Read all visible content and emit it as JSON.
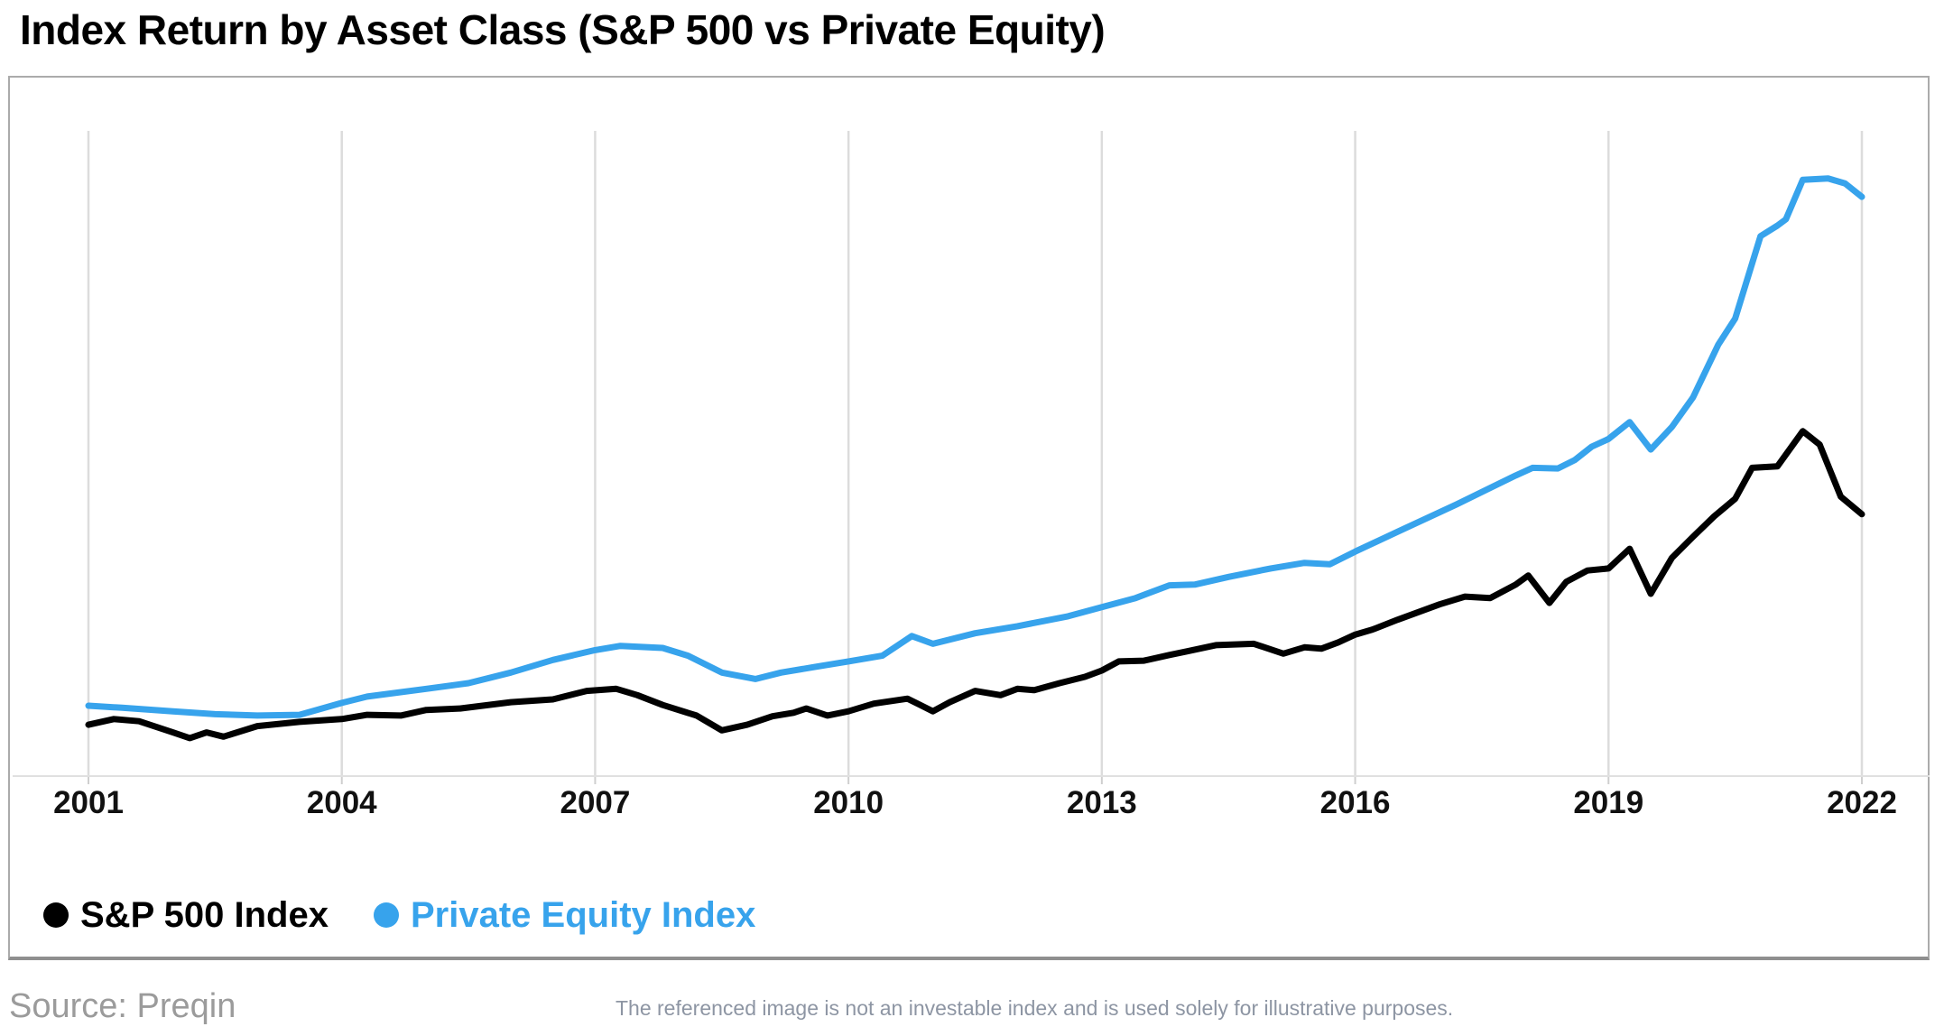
{
  "title": "Index Return by Asset Class (S&P 500 vs Private Equity)",
  "source": "Source: Preqin",
  "disclaimer": "The referenced image is not an investable index and is used solely for illustrative purposes.",
  "colors": {
    "sp500": "#000000",
    "private_equity": "#37A3EC",
    "gridline": "#dcdcdc",
    "axis_line": "#e0e0e0",
    "tick": "#cfcfcf",
    "x_label": "#111111",
    "frame_border": "#ababab",
    "source_text": "#9b9b9b",
    "disclaimer_text": "#8d95a3"
  },
  "legend": [
    {
      "id": "sp500",
      "label": "S&P 500 Index",
      "color": "#000000"
    },
    {
      "id": "private_equity",
      "label": "Private Equity Index",
      "color": "#37A3EC"
    }
  ],
  "chart_data": {
    "type": "line",
    "title": "Index Return by Asset Class (S&P 500 vs Private Equity)",
    "xlabel": "",
    "ylabel": "",
    "x_range": [
      2001,
      2022
    ],
    "x_ticks": [
      2001,
      2004,
      2007,
      2010,
      2013,
      2016,
      2019,
      2022
    ],
    "y_axis_visible": false,
    "ylim": [
      0,
      920
    ],
    "grid": "vertical-only",
    "legend_position": "bottom-left",
    "note": "No y-axis shown in original; values are relative index levels where Private Equity 2001 = 100.",
    "series": [
      {
        "id": "sp500",
        "name": "S&P 500 Index",
        "color": "#000000",
        "points": [
          [
            2001.0,
            73
          ],
          [
            2001.3,
            81
          ],
          [
            2001.6,
            78
          ],
          [
            2002.0,
            62
          ],
          [
            2002.2,
            54
          ],
          [
            2002.4,
            62
          ],
          [
            2002.6,
            56
          ],
          [
            2003.0,
            71
          ],
          [
            2003.5,
            77
          ],
          [
            2004.0,
            81
          ],
          [
            2004.3,
            87
          ],
          [
            2004.7,
            86
          ],
          [
            2005.0,
            94
          ],
          [
            2005.4,
            96
          ],
          [
            2006.0,
            105
          ],
          [
            2006.5,
            109
          ],
          [
            2006.9,
            121
          ],
          [
            2007.25,
            124
          ],
          [
            2007.5,
            115
          ],
          [
            2007.8,
            101
          ],
          [
            2008.2,
            86
          ],
          [
            2008.5,
            65
          ],
          [
            2008.8,
            73
          ],
          [
            2009.1,
            85
          ],
          [
            2009.35,
            90
          ],
          [
            2009.5,
            96
          ],
          [
            2009.75,
            86
          ],
          [
            2010.0,
            92
          ],
          [
            2010.3,
            103
          ],
          [
            2010.7,
            110
          ],
          [
            2011.0,
            92
          ],
          [
            2011.2,
            105
          ],
          [
            2011.5,
            121
          ],
          [
            2011.8,
            115
          ],
          [
            2012.0,
            124
          ],
          [
            2012.2,
            122
          ],
          [
            2012.5,
            132
          ],
          [
            2012.8,
            141
          ],
          [
            2013.0,
            150
          ],
          [
            2013.2,
            163
          ],
          [
            2013.5,
            164
          ],
          [
            2013.8,
            172
          ],
          [
            2014.0,
            177
          ],
          [
            2014.35,
            186
          ],
          [
            2014.8,
            188
          ],
          [
            2015.15,
            174
          ],
          [
            2015.4,
            183
          ],
          [
            2015.6,
            181
          ],
          [
            2015.8,
            190
          ],
          [
            2016.0,
            201
          ],
          [
            2016.2,
            208
          ],
          [
            2016.5,
            222
          ],
          [
            2017.0,
            244
          ],
          [
            2017.3,
            255
          ],
          [
            2017.6,
            253
          ],
          [
            2017.9,
            272
          ],
          [
            2018.05,
            285
          ],
          [
            2018.3,
            246
          ],
          [
            2018.5,
            276
          ],
          [
            2018.75,
            292
          ],
          [
            2019.0,
            295
          ],
          [
            2019.25,
            323
          ],
          [
            2019.5,
            259
          ],
          [
            2019.75,
            310
          ],
          [
            2020.0,
            340
          ],
          [
            2020.25,
            369
          ],
          [
            2020.5,
            394
          ],
          [
            2020.7,
            438
          ],
          [
            2021.0,
            440
          ],
          [
            2021.3,
            490
          ],
          [
            2021.5,
            471
          ],
          [
            2021.75,
            397
          ],
          [
            2022.0,
            372
          ]
        ]
      },
      {
        "id": "private_equity",
        "name": "Private Equity Index",
        "color": "#37A3EC",
        "points": [
          [
            2001.0,
            100
          ],
          [
            2001.4,
            97
          ],
          [
            2002.0,
            92
          ],
          [
            2002.5,
            88
          ],
          [
            2003.0,
            86
          ],
          [
            2003.5,
            87
          ],
          [
            2004.0,
            104
          ],
          [
            2004.3,
            113
          ],
          [
            2005.0,
            124
          ],
          [
            2005.5,
            132
          ],
          [
            2006.0,
            147
          ],
          [
            2006.5,
            165
          ],
          [
            2007.0,
            179
          ],
          [
            2007.3,
            185
          ],
          [
            2007.8,
            182
          ],
          [
            2008.1,
            171
          ],
          [
            2008.5,
            147
          ],
          [
            2008.9,
            138
          ],
          [
            2009.2,
            147
          ],
          [
            2009.6,
            155
          ],
          [
            2010.0,
            163
          ],
          [
            2010.4,
            171
          ],
          [
            2010.75,
            199
          ],
          [
            2011.0,
            188
          ],
          [
            2011.5,
            203
          ],
          [
            2012.0,
            213
          ],
          [
            2012.6,
            227
          ],
          [
            2013.0,
            240
          ],
          [
            2013.4,
            253
          ],
          [
            2013.8,
            271
          ],
          [
            2014.1,
            272
          ],
          [
            2014.5,
            283
          ],
          [
            2015.0,
            295
          ],
          [
            2015.4,
            303
          ],
          [
            2015.7,
            301
          ],
          [
            2016.0,
            319
          ],
          [
            2016.5,
            347
          ],
          [
            2017.2,
            386
          ],
          [
            2017.9,
            427
          ],
          [
            2018.1,
            438
          ],
          [
            2018.4,
            437
          ],
          [
            2018.6,
            449
          ],
          [
            2018.8,
            468
          ],
          [
            2019.0,
            479
          ],
          [
            2019.25,
            503
          ],
          [
            2019.5,
            464
          ],
          [
            2019.75,
            496
          ],
          [
            2020.0,
            538
          ],
          [
            2020.3,
            613
          ],
          [
            2020.5,
            650
          ],
          [
            2020.8,
            767
          ],
          [
            2021.0,
            782
          ],
          [
            2021.1,
            791
          ],
          [
            2021.3,
            847
          ],
          [
            2021.6,
            849
          ],
          [
            2021.8,
            842
          ],
          [
            2022.0,
            823
          ]
        ]
      }
    ]
  }
}
